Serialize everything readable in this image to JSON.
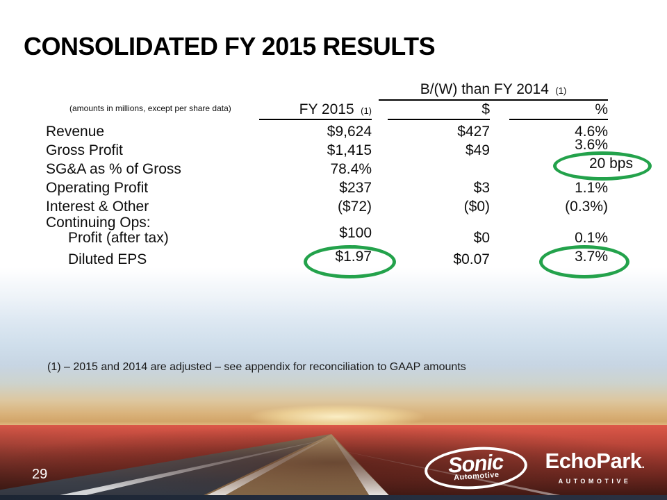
{
  "slide": {
    "title": "CONSOLIDATED FY 2015 RESULTS",
    "footnote": "(1) – 2015 and 2014 are adjusted – see appendix for reconciliation to GAAP amounts",
    "page_number": "29"
  },
  "table": {
    "units_note": "(amounts in millions, except per share data)",
    "group_header": {
      "label": "B/(W) than FY 2014",
      "footnote_ref": "(1)"
    },
    "columns": {
      "fy": {
        "label": "FY 2015",
        "footnote_ref": "(1)"
      },
      "dollar": {
        "label": "$"
      },
      "pct": {
        "label": "%"
      }
    },
    "rows": [
      {
        "label": "Revenue",
        "fy": "$9,624",
        "dollar": "$427",
        "pct": "4.6%"
      },
      {
        "label": "Gross Profit",
        "fy": "$1,415",
        "dollar": "$49",
        "pct": "3.6%"
      },
      {
        "label": "SG&A as % of Gross",
        "fy": "78.4%",
        "dollar": "",
        "pct": "20 bps",
        "pct_circled": true
      },
      {
        "label": "Operating Profit",
        "fy": "$237",
        "dollar": "$3",
        "pct": "1.1%"
      },
      {
        "label": "Interest & Other",
        "fy": "($72)",
        "dollar": "($0)",
        "pct": "(0.3%)"
      },
      {
        "label": "Continuing Ops:",
        "fy": "",
        "dollar": "",
        "pct": ""
      },
      {
        "label": "Profit (after tax)",
        "indent": true,
        "fy": "$100",
        "dollar": "$0",
        "pct": "0.1%"
      },
      {
        "label": "Diluted EPS",
        "indent": true,
        "fy": "$1.97",
        "fy_circled": true,
        "dollar": "$0.07",
        "pct": "3.7%",
        "pct_circled": true
      }
    ]
  },
  "annotations": {
    "highlight_color": "#23a24b",
    "circled_values": [
      "20 bps",
      "$1.97",
      "3.7%"
    ]
  },
  "logos": {
    "sonic": {
      "name": "Sonic",
      "sub": "Automotive"
    },
    "echopark": {
      "name": "EchoPark",
      "mark": ".",
      "sub": "AUTOMOTIVE"
    }
  }
}
